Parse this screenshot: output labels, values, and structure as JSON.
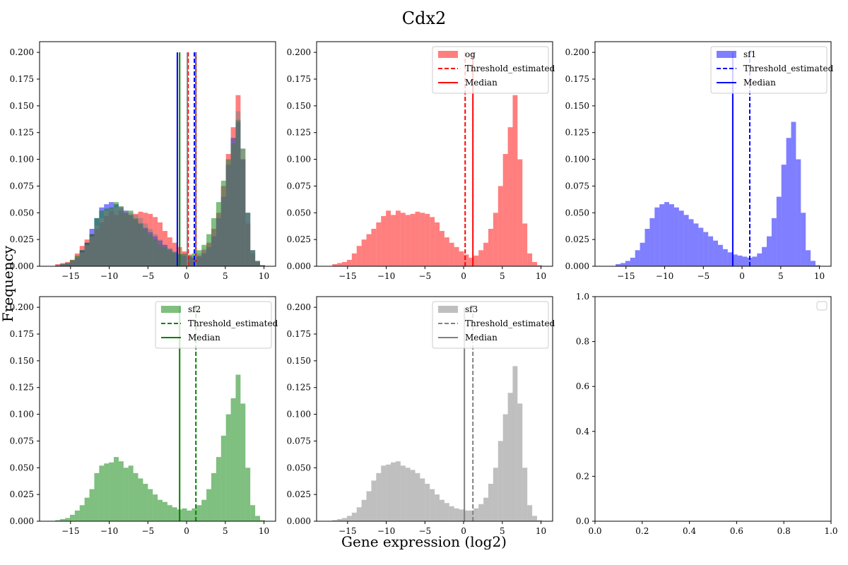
{
  "figure": {
    "suptitle": "Cdx2",
    "xlabel": "Gene expression (log2)",
    "ylabel": "Frequency"
  },
  "chart_data": {
    "type": "histogram-grid",
    "x_edges": [
      -17.6,
      -16.97,
      -16.34,
      -15.71,
      -15.08,
      -14.45,
      -13.82,
      -13.19,
      -12.56,
      -11.93,
      -11.3,
      -10.67,
      -10.04,
      -9.41,
      -8.78,
      -8.15,
      -7.52,
      -6.89,
      -6.26,
      -5.63,
      -5.0,
      -4.37,
      -3.74,
      -3.11,
      -2.48,
      -1.85,
      -1.22,
      -0.59,
      0.04,
      0.67,
      1.3,
      1.93,
      2.56,
      3.19,
      3.82,
      4.45,
      5.08,
      5.71,
      6.34,
      6.97,
      7.6,
      8.23,
      8.86,
      9.49,
      10.12
    ],
    "panels": [
      {
        "name": "overlay",
        "xlim": [
          -19,
          11.5
        ],
        "ylim": [
          0,
          0.21
        ],
        "xticks": [
          -15,
          -10,
          -5,
          0,
          5,
          10
        ],
        "yticks": [
          0.0,
          0.025,
          0.05,
          0.075,
          0.1,
          0.125,
          0.15,
          0.175,
          0.2
        ],
        "ytick_labels": [
          "0.000",
          "0.025",
          "0.050",
          "0.075",
          "0.100",
          "0.125",
          "0.150",
          "0.175",
          "0.200"
        ],
        "overlay_of": [
          "og",
          "sf1",
          "sf2",
          "sf3"
        ],
        "legend": false
      },
      {
        "name": "og",
        "label": "og",
        "color": "#ff0000",
        "values": [
          0.0,
          0.002,
          0.003,
          0.004,
          0.006,
          0.012,
          0.019,
          0.025,
          0.03,
          0.035,
          0.041,
          0.047,
          0.052,
          0.048,
          0.052,
          0.05,
          0.048,
          0.049,
          0.051,
          0.05,
          0.049,
          0.046,
          0.041,
          0.033,
          0.027,
          0.022,
          0.018,
          0.014,
          0.011,
          0.008,
          0.01,
          0.015,
          0.022,
          0.035,
          0.05,
          0.075,
          0.105,
          0.13,
          0.16,
          0.1,
          0.04,
          0.012,
          0.004,
          0.001
        ],
        "threshold": 0.2,
        "median": 1.2,
        "xlim": [
          -19,
          11.5
        ],
        "ylim": [
          0,
          0.21
        ],
        "xticks": [
          -15,
          -10,
          -5,
          0,
          5,
          10
        ],
        "yticks": [
          0.0,
          0.025,
          0.05,
          0.075,
          0.1,
          0.125,
          0.15,
          0.175,
          0.2
        ],
        "ytick_labels": [
          "0.000",
          "0.025",
          "0.050",
          "0.075",
          "0.100",
          "0.125",
          "0.150",
          "0.175",
          "0.200"
        ],
        "legend": true,
        "legend_entries": [
          "og",
          "Threshold_estimated",
          "Median"
        ]
      },
      {
        "name": "sf1",
        "label": "sf1",
        "color": "#0000ff",
        "values": [
          0.0,
          0.0,
          0.002,
          0.003,
          0.005,
          0.008,
          0.015,
          0.022,
          0.035,
          0.045,
          0.055,
          0.058,
          0.06,
          0.058,
          0.055,
          0.052,
          0.048,
          0.044,
          0.04,
          0.036,
          0.032,
          0.028,
          0.024,
          0.02,
          0.016,
          0.013,
          0.011,
          0.01,
          0.009,
          0.008,
          0.009,
          0.012,
          0.018,
          0.028,
          0.045,
          0.065,
          0.095,
          0.12,
          0.135,
          0.1,
          0.05,
          0.015,
          0.005,
          0.001
        ],
        "threshold": 1.0,
        "median": -1.2,
        "xlim": [
          -19,
          11.5
        ],
        "ylim": [
          0,
          0.21
        ],
        "xticks": [
          -15,
          -10,
          -5,
          0,
          5,
          10
        ],
        "yticks": [
          0.0,
          0.025,
          0.05,
          0.075,
          0.1,
          0.125,
          0.15,
          0.175,
          0.2
        ],
        "ytick_labels": [
          "0.000",
          "0.025",
          "0.050",
          "0.075",
          "0.100",
          "0.125",
          "0.150",
          "0.175",
          "0.200"
        ],
        "legend": true,
        "legend_entries": [
          "sf1",
          "Threshold_estimated",
          "Median"
        ]
      },
      {
        "name": "sf2",
        "label": "sf2",
        "color": "#008000",
        "values": [
          0.0,
          0.001,
          0.002,
          0.003,
          0.006,
          0.01,
          0.015,
          0.022,
          0.03,
          0.045,
          0.052,
          0.054,
          0.055,
          0.06,
          0.056,
          0.05,
          0.052,
          0.045,
          0.04,
          0.035,
          0.03,
          0.025,
          0.02,
          0.018,
          0.015,
          0.013,
          0.011,
          0.012,
          0.01,
          0.012,
          0.015,
          0.02,
          0.03,
          0.045,
          0.06,
          0.08,
          0.1,
          0.115,
          0.137,
          0.11,
          0.05,
          0.015,
          0.005,
          0.001
        ],
        "threshold": 1.2,
        "median": -0.9,
        "xlim": [
          -19,
          11.5
        ],
        "ylim": [
          0,
          0.21
        ],
        "xticks": [
          -15,
          -10,
          -5,
          0,
          5,
          10
        ],
        "yticks": [
          0.0,
          0.025,
          0.05,
          0.075,
          0.1,
          0.125,
          0.15,
          0.175,
          0.2
        ],
        "ytick_labels": [
          "0.000",
          "0.025",
          "0.050",
          "0.075",
          "0.100",
          "0.125",
          "0.150",
          "0.175",
          "0.200"
        ],
        "legend": true,
        "legend_entries": [
          "sf2",
          "Threshold_estimated",
          "Median"
        ]
      },
      {
        "name": "sf3",
        "label": "sf3",
        "color": "#808080",
        "values": [
          0.0,
          0.001,
          0.002,
          0.003,
          0.005,
          0.008,
          0.013,
          0.02,
          0.028,
          0.038,
          0.045,
          0.052,
          0.053,
          0.055,
          0.056,
          0.052,
          0.05,
          0.048,
          0.045,
          0.04,
          0.035,
          0.03,
          0.025,
          0.02,
          0.017,
          0.014,
          0.012,
          0.011,
          0.01,
          0.01,
          0.012,
          0.016,
          0.022,
          0.035,
          0.05,
          0.075,
          0.1,
          0.12,
          0.145,
          0.11,
          0.05,
          0.015,
          0.005,
          0.001
        ],
        "threshold": 1.2,
        "median": 0.1,
        "xlim": [
          -19,
          11.5
        ],
        "ylim": [
          0,
          0.21
        ],
        "xticks": [
          -15,
          -10,
          -5,
          0,
          5,
          10
        ],
        "yticks": [
          0.0,
          0.025,
          0.05,
          0.075,
          0.1,
          0.125,
          0.15,
          0.175,
          0.2
        ],
        "ytick_labels": [
          "0.000",
          "0.025",
          "0.050",
          "0.075",
          "0.100",
          "0.125",
          "0.150",
          "0.175",
          "0.200"
        ],
        "legend": true,
        "legend_entries": [
          "sf3",
          "Threshold_estimated",
          "Median"
        ]
      },
      {
        "name": "empty",
        "xlim": [
          0,
          1
        ],
        "ylim": [
          0,
          1
        ],
        "xticks": [
          0.0,
          0.2,
          0.4,
          0.6,
          0.8,
          1.0
        ],
        "yticks": [
          0.0,
          0.2,
          0.4,
          0.6,
          0.8,
          1.0
        ],
        "xtick_labels": [
          "0.0",
          "0.2",
          "0.4",
          "0.6",
          "0.8",
          "1.0"
        ],
        "ytick_labels": [
          "0.0",
          "0.2",
          "0.4",
          "0.6",
          "0.8",
          "1.0"
        ],
        "legend": true,
        "legend_entries": []
      }
    ]
  }
}
